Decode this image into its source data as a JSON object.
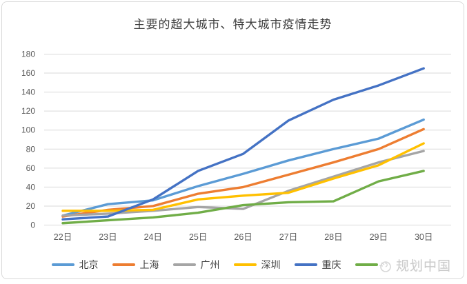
{
  "chart_data": {
    "type": "line",
    "title": "主要的超大城市、特大城市疫情走势",
    "categories": [
      "22日",
      "23日",
      "24日",
      "25日",
      "26日",
      "27日",
      "28日",
      "29日",
      "30日"
    ],
    "series": [
      {
        "name": "北京",
        "color": "#5B9BD5",
        "values": [
          10,
          22,
          26,
          41,
          54,
          68,
          80,
          91,
          111
        ]
      },
      {
        "name": "上海",
        "color": "#ED7D31",
        "values": [
          9,
          16,
          20,
          33,
          40,
          53,
          66,
          80,
          101
        ]
      },
      {
        "name": "广州",
        "color": "#A5A5A5",
        "values": [
          10,
          12,
          15,
          19,
          17,
          36,
          51,
          66,
          78
        ]
      },
      {
        "name": "深圳",
        "color": "#FFC000",
        "values": [
          15,
          15,
          16,
          27,
          31,
          34,
          49,
          63,
          86
        ]
      },
      {
        "name": "重庆",
        "color": "#4472C4",
        "values": [
          6,
          9,
          27,
          57,
          75,
          110,
          132,
          147,
          165
        ]
      },
      {
        "name": "",
        "label_obscured_by_watermark": true,
        "color": "#70AD47",
        "values": [
          2,
          5,
          8,
          13,
          21,
          24,
          25,
          46,
          57
        ]
      }
    ],
    "xlabel": "",
    "ylabel": "",
    "ylim": [
      0,
      180
    ],
    "ytick_step": 20,
    "grid": true,
    "legend_position": "bottom",
    "gridline_color": "#D9D9D9",
    "axis_label_color": "#595959"
  },
  "watermark": {
    "text": "规划中国"
  }
}
